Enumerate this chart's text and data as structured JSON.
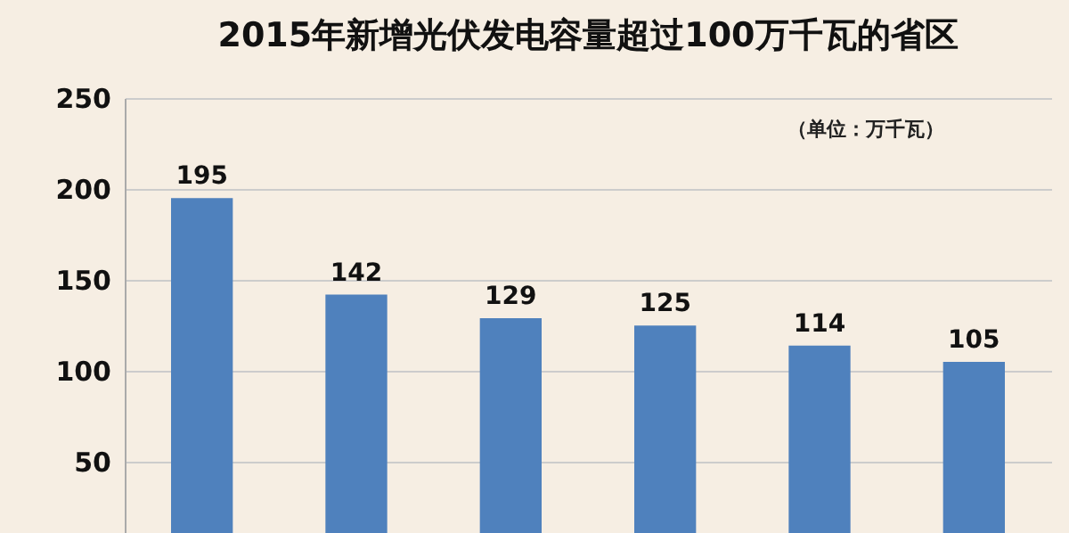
{
  "chart_data": {
    "type": "bar",
    "title": "2015年新增光伏发电容量超过100万千瓦的省区",
    "annotations": [
      "（单位：万千瓦）"
    ],
    "categories": [
      null,
      null,
      null,
      null,
      null,
      null
    ],
    "values": [
      195,
      142,
      129,
      125,
      114,
      105
    ],
    "color": "#4f81bd",
    "ylim": [
      11,
      250
    ],
    "yticks": [
      50,
      100,
      150,
      200,
      250
    ],
    "grid": "y",
    "data_labels": true,
    "tick_labels": "y"
  }
}
